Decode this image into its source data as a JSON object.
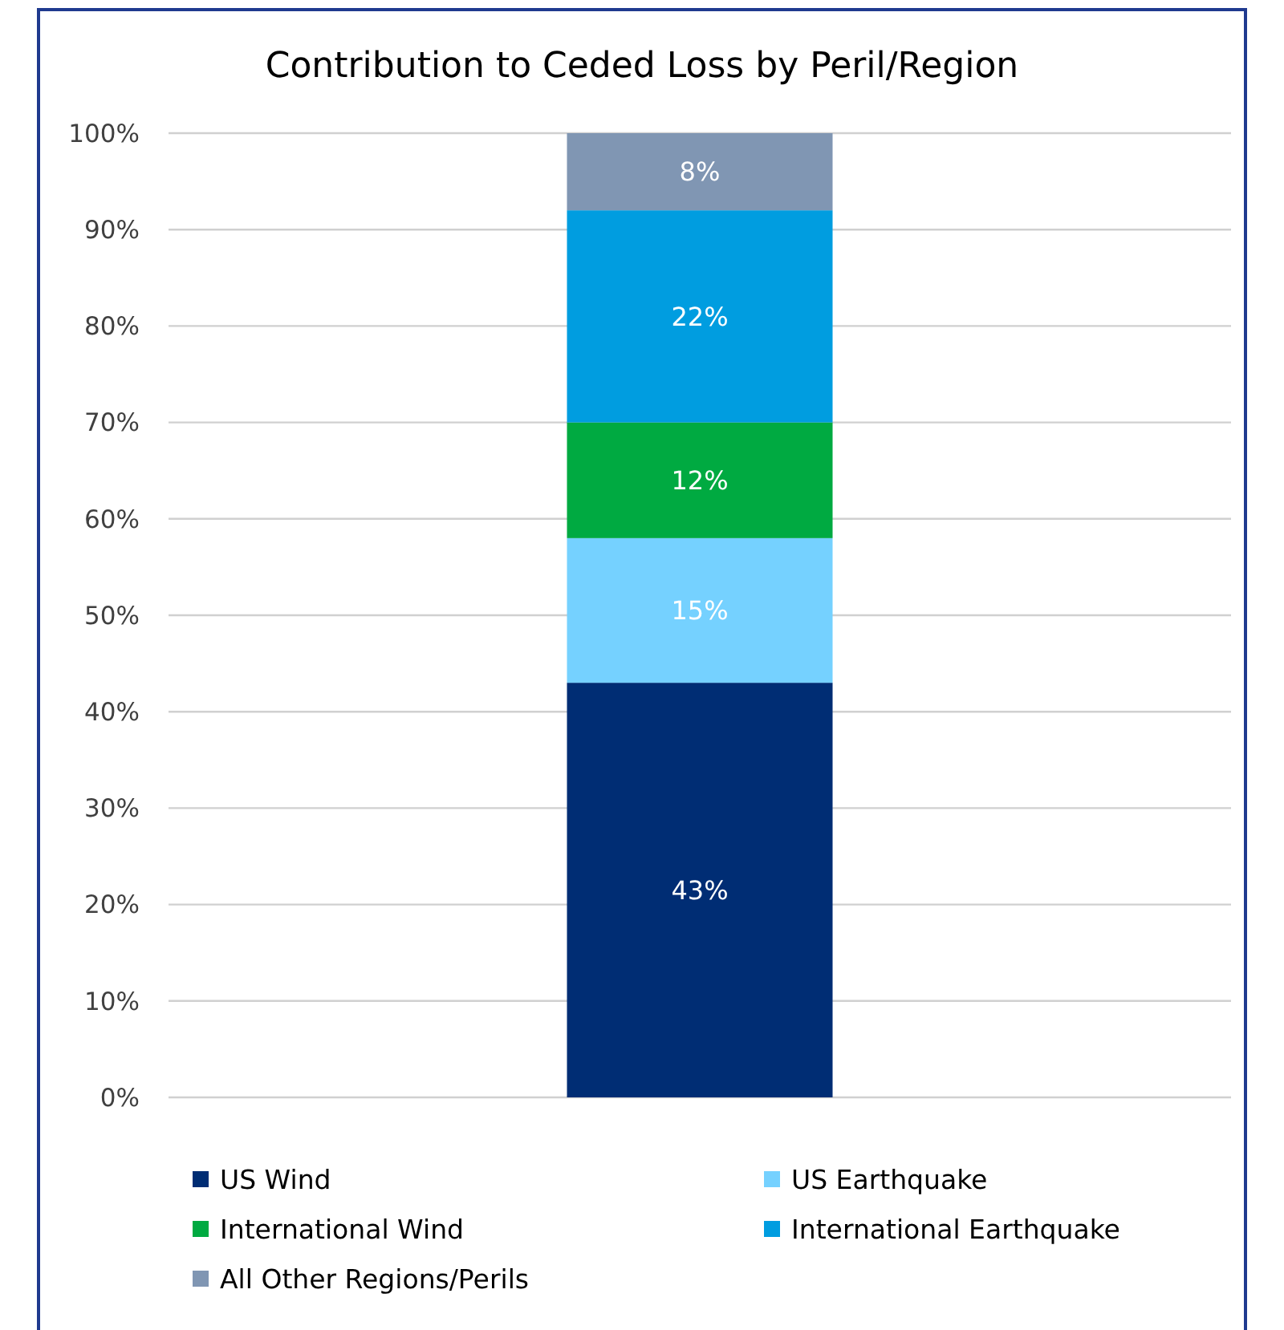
{
  "chart_data": {
    "type": "bar",
    "title": "Contribution to Ceded Loss by Peril/Region",
    "stacked": true,
    "categories": [
      null
    ],
    "series": [
      {
        "name": "US Wind",
        "color": "#002d74",
        "values": [
          43
        ],
        "value_labels": [
          "43%"
        ]
      },
      {
        "name": "US Earthquake",
        "color": "#75d1ff",
        "values": [
          15
        ],
        "value_labels": [
          "15%"
        ]
      },
      {
        "name": "International Wind",
        "color": "#00aa41",
        "values": [
          12
        ],
        "value_labels": [
          "12%"
        ]
      },
      {
        "name": "International Earthquake",
        "color": "#009de0",
        "values": [
          22
        ],
        "value_labels": [
          "22%"
        ]
      },
      {
        "name": "All Other Regions/Perils",
        "color": "#8096b3",
        "values": [
          8
        ],
        "value_labels": [
          "8%"
        ]
      }
    ],
    "ylim": [
      0,
      100
    ],
    "yticks": [
      {
        "value": 0,
        "label": "0%"
      },
      {
        "value": 10,
        "label": "10%"
      },
      {
        "value": 20,
        "label": "20%"
      },
      {
        "value": 30,
        "label": "30%"
      },
      {
        "value": 40,
        "label": "40%"
      },
      {
        "value": 50,
        "label": "50%"
      },
      {
        "value": 60,
        "label": "60%"
      },
      {
        "value": 70,
        "label": "70%"
      },
      {
        "value": 80,
        "label": "80%"
      },
      {
        "value": 90,
        "label": "90%"
      },
      {
        "value": 100,
        "label": "100%"
      }
    ],
    "tick_labels": "y",
    "grid": "y",
    "legend": "bottom"
  }
}
